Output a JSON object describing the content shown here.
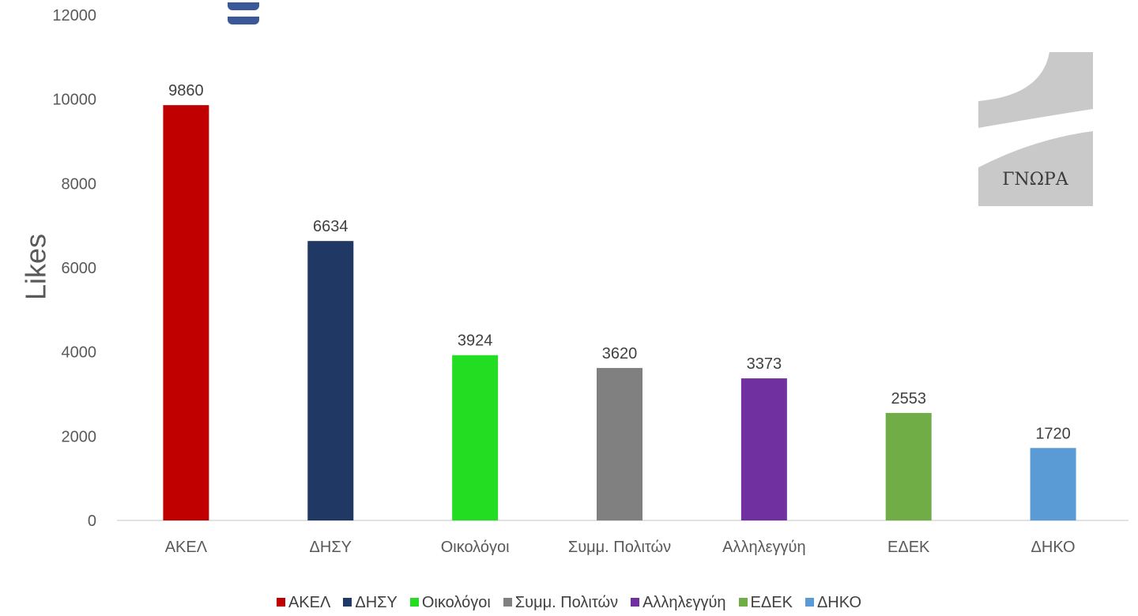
{
  "chart_data": {
    "type": "bar",
    "ylabel": "Likes",
    "ylim": [
      0,
      12000
    ],
    "yticks": [
      0,
      2000,
      4000,
      6000,
      8000,
      10000,
      12000
    ],
    "grid": false,
    "legend_position": "bottom",
    "categories": [
      "ΑΚΕΛ",
      "ΔΗΣΥ",
      "Οικολόγοι",
      "Συμμ. Πολιτών",
      "Αλληλεγγύη",
      "ΕΔΕΚ",
      "ΔΗΚΟ"
    ],
    "values": [
      9860,
      6634,
      3924,
      3620,
      3373,
      2553,
      1720
    ],
    "value_labels": [
      "9860",
      "6634",
      "3924",
      "3620",
      "3373",
      "2553",
      "1720"
    ],
    "colors": [
      "#c00000",
      "#1f3864",
      "#22dd22",
      "#808080",
      "#7030a0",
      "#70ad47",
      "#5b9bd5"
    ]
  },
  "logo": {
    "text": "ΓΝΩΡΑ",
    "background": "#c9c9c9"
  },
  "facebook_badge": {
    "icon": "facebook-icon",
    "color": "#3b5998"
  }
}
